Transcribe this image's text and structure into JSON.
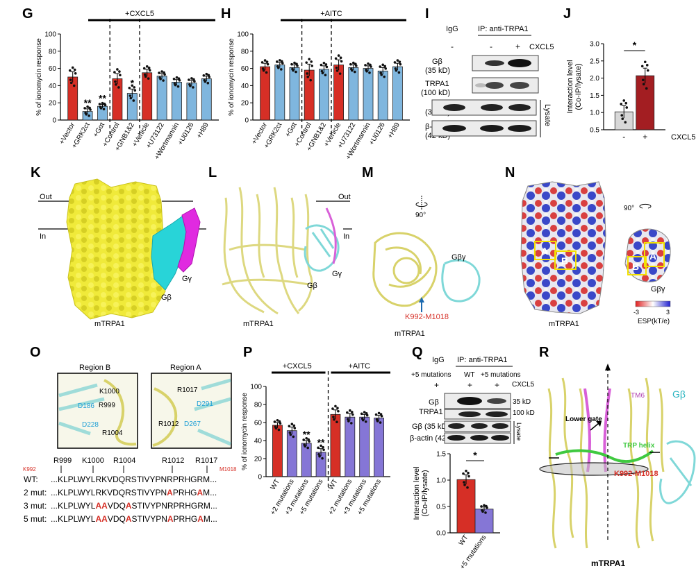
{
  "panel_letters": {
    "G": "G",
    "H": "H",
    "I": "I",
    "J": "J",
    "K": "K",
    "L": "L",
    "M": "M",
    "N": "N",
    "O": "O",
    "P": "P",
    "Q": "Q",
    "R": "R"
  },
  "colors": {
    "red": "#d62f26",
    "blue": "#7fb6de",
    "purple": "#8576d6",
    "darkred": "#a31e22",
    "yellow": "#f2ec3a",
    "cyan": "#29d6da",
    "magenta": "#e12ae0",
    "green": "#3fc940"
  },
  "common": {
    "ylabel_ionomycin": "% of ionomycin response",
    "ylabel_coip_1": "Interaction level",
    "ylabel_coip_2": "(Co-IP/lysate)",
    "mtrpa1": "mTRPA1",
    "cxcl5": "CXCL5",
    "minus": "-",
    "plus": "+",
    "igg": "IgG",
    "ip": "IP: anti-TRPA1",
    "lysate": "Lysate",
    "sig_1": "*",
    "sig_2": "**"
  },
  "chart_data": [
    {
      "panel": "G",
      "type": "bar",
      "title": "+CXCL5",
      "ylabel": "% of ionomycin response",
      "ylim": [
        0,
        100
      ],
      "yticks": [
        0,
        20,
        40,
        60,
        80,
        100
      ],
      "categories": [
        "+Vector",
        "+GRK2ct",
        "+Gαt",
        "+Control",
        "+GNB1&2",
        "+Vehicle",
        "+U73122",
        "+Wortmannin",
        "+U0126",
        "+H89"
      ],
      "values": [
        50,
        10,
        16,
        48,
        31,
        55,
        51,
        44,
        43,
        48
      ],
      "errors": [
        6,
        3,
        2,
        6,
        5,
        4,
        3,
        3,
        3,
        3
      ],
      "bar_colors": [
        "red",
        "blue",
        "blue",
        "red",
        "blue",
        "red",
        "blue",
        "blue",
        "blue",
        "blue"
      ],
      "significance": [
        "",
        "**",
        "**",
        "",
        "*",
        "",
        "",
        "",
        "",
        ""
      ],
      "group_dividers": [
        3,
        5
      ]
    },
    {
      "panel": "H",
      "type": "bar",
      "title": "+AITC",
      "ylabel": "% of ionomycin response",
      "ylim": [
        0,
        100
      ],
      "yticks": [
        0,
        20,
        40,
        60,
        80,
        100
      ],
      "categories": [
        "+Vector",
        "+GRK2ct",
        "+Gαt",
        "+Control",
        "+GNB1&2",
        "+Vehicle",
        "+U73122",
        "+Wortmannin",
        "+U0126",
        "+H89"
      ],
      "values": [
        62,
        64,
        61,
        58,
        59,
        64,
        61,
        60,
        57,
        62
      ],
      "errors": [
        4,
        3,
        3,
        7,
        4,
        6,
        3,
        3,
        4,
        4
      ],
      "bar_colors": [
        "red",
        "blue",
        "blue",
        "red",
        "blue",
        "red",
        "blue",
        "blue",
        "blue",
        "blue"
      ],
      "significance": [
        "",
        "",
        "",
        "",
        "",
        "",
        "",
        "",
        "",
        ""
      ],
      "group_dividers": [
        3,
        5
      ]
    },
    {
      "panel": "J",
      "type": "bar",
      "ylabel": "Interaction level (Co-IP/lysate)",
      "ylim": [
        0,
        3.0
      ],
      "yticks": [
        0.5,
        1.0,
        1.5,
        2.0,
        2.5,
        3.0
      ],
      "categories": [
        "-",
        "+"
      ],
      "xgroup_label": "CXCL5",
      "values": [
        1.02,
        2.07
      ],
      "errors": [
        0.18,
        0.22
      ],
      "bar_colors": [
        "lightgray",
        "darkred"
      ],
      "significance_bracket": "*"
    },
    {
      "panel": "P",
      "type": "bar",
      "ylabel": "% of ionomycin response",
      "ylim": [
        0,
        100
      ],
      "yticks": [
        0,
        20,
        40,
        60,
        80,
        100
      ],
      "group_titles": [
        "+CXCL5",
        "+AITC"
      ],
      "categories": [
        "WT",
        "+2 mutations",
        "+3 mutations",
        "+5 mutations",
        "WT",
        "+2 mutations",
        "+3 mutations",
        "+5 mutations"
      ],
      "values": [
        57,
        51,
        37,
        27,
        69,
        66,
        66,
        65
      ],
      "errors": [
        3,
        4,
        3,
        4,
        5,
        4,
        3,
        3
      ],
      "bar_colors": [
        "red",
        "purple",
        "purple",
        "purple",
        "red",
        "purple",
        "purple",
        "purple"
      ],
      "significance": [
        "",
        "",
        "**",
        "**",
        "",
        "",
        "",
        ""
      ],
      "group_dividers": [
        4
      ]
    },
    {
      "panel": "Q",
      "type": "bar",
      "ylabel": "Interaction level (Co-IP/lysate)",
      "ylim": [
        0,
        1.5
      ],
      "yticks": [
        0.0,
        0.5,
        1.0,
        1.5
      ],
      "categories": [
        "WT",
        "+5 mutations"
      ],
      "values": [
        1.01,
        0.45
      ],
      "errors": [
        0.09,
        0.04
      ],
      "bar_colors": [
        "red",
        "purple"
      ],
      "significance_bracket": "*"
    }
  ],
  "panel_I": {
    "lanes": [
      "-",
      "-",
      "+"
    ],
    "cxcl5": "CXCL5",
    "blots": [
      "Gβ",
      "(35 kD)",
      "TRPA1",
      "(100 kD)",
      "Gβ",
      "(35 kD)",
      "β-actin",
      "(42 kD)"
    ]
  },
  "panel_K": {
    "out": "Out",
    "in": "In",
    "gbeta": "Gβ",
    "ggamma": "Gγ"
  },
  "panel_L": {
    "out": "Out",
    "in": "In",
    "gbeta": "Gβ",
    "ggamma": "Gγ"
  },
  "panel_M": {
    "rot": "90°",
    "gbg": "Gβγ",
    "site": "K992-M1018"
  },
  "panel_N": {
    "rot": "90°",
    "gbg": "Gβγ",
    "A": "A",
    "B": "B",
    "scale_min": "-3",
    "scale_max": "3",
    "scale_label": "ESP(kT/e)"
  },
  "panel_O": {
    "region_b": "Region B",
    "region_a": "Region A",
    "b_labels": [
      "K1000",
      "R999",
      "D186",
      "D228",
      "R1004"
    ],
    "a_labels": [
      "R1017",
      "D291",
      "R1012",
      "D267"
    ],
    "residue_labels": [
      "R999",
      "K1000",
      "R1004",
      "R1012",
      "R1017"
    ],
    "start": "K992",
    "end": "M1018",
    "rows": [
      {
        "label": "WT:",
        "parts": [
          [
            "...KLPLWYLRKVDQRSTIVYPNRPRHGRM...",
            false
          ]
        ]
      },
      {
        "label": "2 mut:",
        "parts": [
          [
            "...KLPLWYLRKVDQRSTIVYPN",
            false
          ],
          [
            "A",
            true
          ],
          [
            "PRHG",
            false
          ],
          [
            "A",
            true
          ],
          [
            "M...",
            false
          ]
        ]
      },
      {
        "label": "3 mut:",
        "parts": [
          [
            "...KLPLWYL",
            false
          ],
          [
            "AA",
            true
          ],
          [
            "VDQ",
            false
          ],
          [
            "A",
            true
          ],
          [
            "STIVYPNRPRHGRM...",
            false
          ]
        ]
      },
      {
        "label": "5 mut:",
        "parts": [
          [
            "...KLPLWYL",
            false
          ],
          [
            "AA",
            true
          ],
          [
            "VDQ",
            false
          ],
          [
            "A",
            true
          ],
          [
            "STIVYPN",
            false
          ],
          [
            "A",
            true
          ],
          [
            "PRHG",
            false
          ],
          [
            "A",
            true
          ],
          [
            "M...",
            false
          ]
        ]
      }
    ]
  },
  "panel_Q_blot": {
    "cond": "+5 mutations",
    "wt": "WT",
    "mut": "+5 mutations",
    "lanes": [
      "+",
      "+",
      "+"
    ],
    "rows": [
      "Gβ",
      "TRPA1",
      "Gβ (35 kD)",
      "β-actin (42 kD)"
    ],
    "kd": [
      "35 kD",
      "100 kD"
    ]
  },
  "panel_R": {
    "tm6": "TM6",
    "lower_gate": "Lower gate",
    "trp_helix": "TRP helix",
    "site": "K992-M1018",
    "gbeta": "Gβ"
  }
}
